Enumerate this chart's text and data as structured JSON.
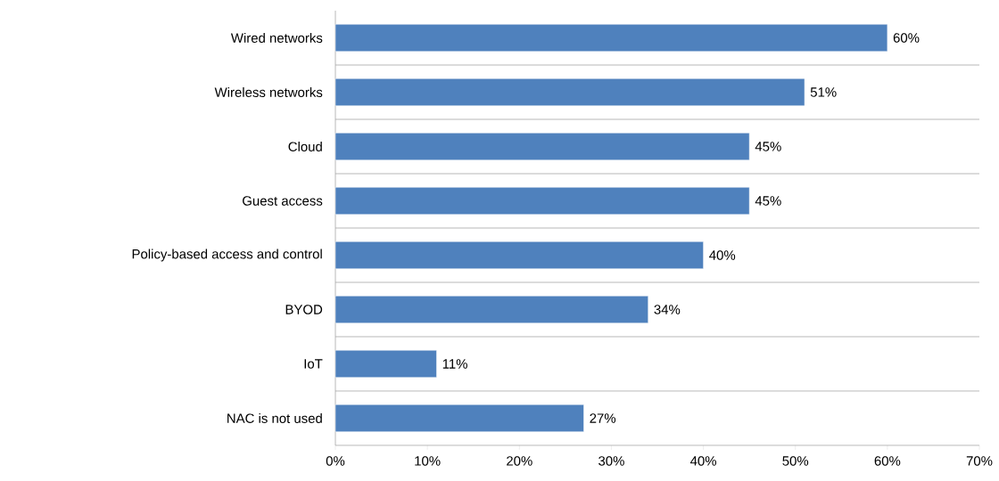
{
  "chart_data": {
    "type": "bar",
    "orientation": "horizontal",
    "categories": [
      "Wired networks",
      "Wireless networks",
      "Cloud",
      "Guest access",
      "Policy-based access and control",
      "BYOD",
      "IoT",
      "NAC is not used"
    ],
    "values": [
      60,
      51,
      45,
      45,
      40,
      34,
      11,
      27
    ],
    "value_labels": [
      "60%",
      "51%",
      "45%",
      "45%",
      "40%",
      "34%",
      "11%",
      "27%"
    ],
    "color": "#4f81bd",
    "xlim": [
      0,
      70
    ],
    "xticks": [
      {
        "value": 0,
        "label": "0%"
      },
      {
        "value": 10,
        "label": "10%"
      },
      {
        "value": 20,
        "label": "20%"
      },
      {
        "value": 30,
        "label": "30%"
      },
      {
        "value": 40,
        "label": "40%"
      },
      {
        "value": 50,
        "label": "50%"
      },
      {
        "value": 60,
        "label": "60%"
      },
      {
        "value": 70,
        "label": "70%"
      }
    ],
    "grid": "y"
  }
}
